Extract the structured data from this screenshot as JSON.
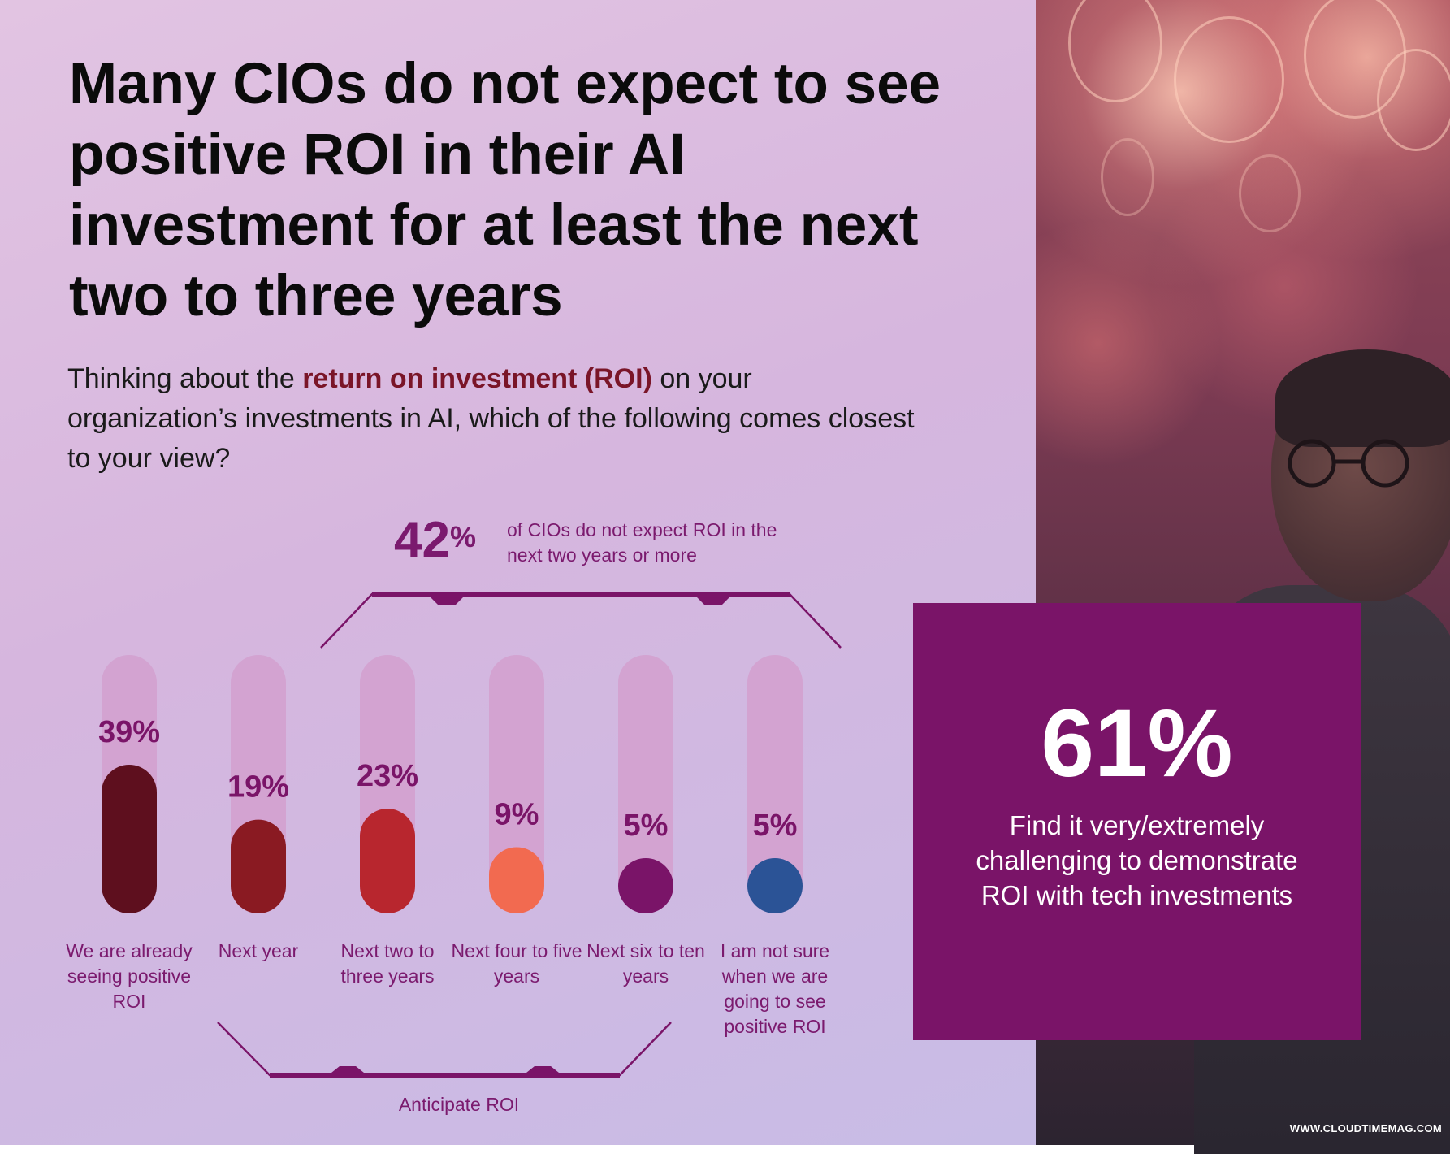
{
  "headline": "Many CIOs do not expect to see positive ROI in their AI investment for at least the next two to three years",
  "question": {
    "before": "Thinking about the ",
    "highlight": "return on investment (ROI)",
    "after": " on your organization’s investments in AI, which of the following comes closest to your view?"
  },
  "callout": {
    "number": "42",
    "percent_sign": "%",
    "text": "of CIOs do not expect ROI in the next two years or more"
  },
  "bracket_label": "Anticipate ROI",
  "chart_data": {
    "type": "bar",
    "categories": [
      "We are already seeing positive ROI",
      "Next year",
      "Next two to three years",
      "Next four to five years",
      "Next six to ten years",
      "I am not sure when we are going to see positive ROI"
    ],
    "values": [
      39,
      19,
      23,
      9,
      5,
      5
    ],
    "value_labels": [
      "39%",
      "19%",
      "23%",
      "9%",
      "5%",
      "5%"
    ],
    "colors": [
      "#5e0f1e",
      "#8a1a22",
      "#b8262e",
      "#f26a50",
      "#7a1468",
      "#2b5396"
    ],
    "track_color": "#d3a3d1",
    "ylim": [
      0,
      100
    ]
  },
  "stat_box": {
    "value": "61%",
    "text": "Find it very/extremely challenging to demonstrate ROI with tech investments"
  },
  "footer": {
    "url": "WWW.CLOUDTIMEMAG.COM"
  }
}
